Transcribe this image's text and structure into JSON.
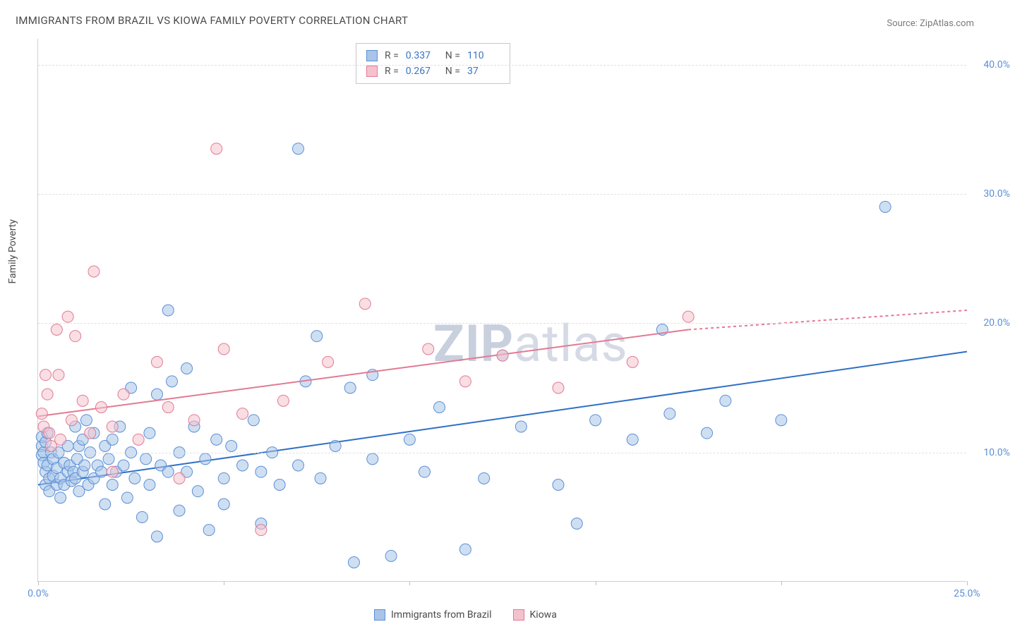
{
  "title": "IMMIGRANTS FROM BRAZIL VS KIOWA FAMILY POVERTY CORRELATION CHART",
  "source": "Source: ZipAtlas.com",
  "watermark_bold": "ZIP",
  "watermark_rest": "atlas",
  "y_axis_label": "Family Poverty",
  "chart": {
    "type": "scatter",
    "xlim": [
      0,
      25
    ],
    "ylim": [
      0,
      42
    ],
    "x_ticks": [
      0,
      5,
      10,
      15,
      20,
      25
    ],
    "x_tick_labels": [
      "0.0%",
      "",
      "",
      "",
      "",
      "25.0%"
    ],
    "y_ticks": [
      10,
      20,
      30,
      40
    ],
    "y_tick_labels": [
      "10.0%",
      "20.0%",
      "30.0%",
      "40.0%"
    ],
    "grid_color": "#e0e0e0",
    "background_color": "#ffffff",
    "marker_radius": 8,
    "marker_opacity": 0.55,
    "series": [
      {
        "name": "Immigrants from Brazil",
        "color_fill": "#a8c4e8",
        "color_stroke": "#5b8fd6",
        "r_value": "0.337",
        "n_value": "110",
        "trend": {
          "x1": 0,
          "y1": 7.5,
          "x2": 25,
          "y2": 17.8,
          "color": "#2f6fc7",
          "width": 2
        },
        "points": [
          [
            0.1,
            10.5
          ],
          [
            0.1,
            9.8
          ],
          [
            0.1,
            11.2
          ],
          [
            0.15,
            10.0
          ],
          [
            0.15,
            9.2
          ],
          [
            0.2,
            7.5
          ],
          [
            0.2,
            8.5
          ],
          [
            0.2,
            10.8
          ],
          [
            0.25,
            9.0
          ],
          [
            0.25,
            11.5
          ],
          [
            0.3,
            7.0
          ],
          [
            0.3,
            8.0
          ],
          [
            0.35,
            10.0
          ],
          [
            0.4,
            8.2
          ],
          [
            0.4,
            9.5
          ],
          [
            0.5,
            7.5
          ],
          [
            0.5,
            8.8
          ],
          [
            0.55,
            10.0
          ],
          [
            0.6,
            8.0
          ],
          [
            0.6,
            6.5
          ],
          [
            0.7,
            9.2
          ],
          [
            0.7,
            7.5
          ],
          [
            0.8,
            8.5
          ],
          [
            0.8,
            10.5
          ],
          [
            0.85,
            9.0
          ],
          [
            0.9,
            7.8
          ],
          [
            0.95,
            8.5
          ],
          [
            1.0,
            12.0
          ],
          [
            1.0,
            8.0
          ],
          [
            1.05,
            9.5
          ],
          [
            1.1,
            10.5
          ],
          [
            1.1,
            7.0
          ],
          [
            1.2,
            11.0
          ],
          [
            1.2,
            8.5
          ],
          [
            1.25,
            9.0
          ],
          [
            1.3,
            12.5
          ],
          [
            1.35,
            7.5
          ],
          [
            1.4,
            10.0
          ],
          [
            1.5,
            8.0
          ],
          [
            1.5,
            11.5
          ],
          [
            1.6,
            9.0
          ],
          [
            1.7,
            8.5
          ],
          [
            1.8,
            10.5
          ],
          [
            1.8,
            6.0
          ],
          [
            1.9,
            9.5
          ],
          [
            2.0,
            11.0
          ],
          [
            2.0,
            7.5
          ],
          [
            2.1,
            8.5
          ],
          [
            2.2,
            12.0
          ],
          [
            2.3,
            9.0
          ],
          [
            2.4,
            6.5
          ],
          [
            2.5,
            15.0
          ],
          [
            2.5,
            10.0
          ],
          [
            2.6,
            8.0
          ],
          [
            2.8,
            5.0
          ],
          [
            2.9,
            9.5
          ],
          [
            3.0,
            11.5
          ],
          [
            3.0,
            7.5
          ],
          [
            3.2,
            3.5
          ],
          [
            3.2,
            14.5
          ],
          [
            3.3,
            9.0
          ],
          [
            3.5,
            8.5
          ],
          [
            3.5,
            21.0
          ],
          [
            3.6,
            15.5
          ],
          [
            3.8,
            10.0
          ],
          [
            3.8,
            5.5
          ],
          [
            4.0,
            8.5
          ],
          [
            4.0,
            16.5
          ],
          [
            4.2,
            12.0
          ],
          [
            4.3,
            7.0
          ],
          [
            4.5,
            9.5
          ],
          [
            4.6,
            4.0
          ],
          [
            4.8,
            11.0
          ],
          [
            5.0,
            8.0
          ],
          [
            5.0,
            6.0
          ],
          [
            5.2,
            10.5
          ],
          [
            5.5,
            9.0
          ],
          [
            5.8,
            12.5
          ],
          [
            6.0,
            8.5
          ],
          [
            6.0,
            4.5
          ],
          [
            6.3,
            10.0
          ],
          [
            6.5,
            7.5
          ],
          [
            7.0,
            9.0
          ],
          [
            7.0,
            33.5
          ],
          [
            7.2,
            15.5
          ],
          [
            7.5,
            19.0
          ],
          [
            7.6,
            8.0
          ],
          [
            8.0,
            10.5
          ],
          [
            8.4,
            15.0
          ],
          [
            8.5,
            1.5
          ],
          [
            9.0,
            9.5
          ],
          [
            9.0,
            16.0
          ],
          [
            9.5,
            2.0
          ],
          [
            10.0,
            11.0
          ],
          [
            10.4,
            8.5
          ],
          [
            10.8,
            13.5
          ],
          [
            11.5,
            2.5
          ],
          [
            12.0,
            8.0
          ],
          [
            12.5,
            17.5
          ],
          [
            13.0,
            12.0
          ],
          [
            14.0,
            7.5
          ],
          [
            14.5,
            4.5
          ],
          [
            15.0,
            12.5
          ],
          [
            16.0,
            11.0
          ],
          [
            16.8,
            19.5
          ],
          [
            17.0,
            13.0
          ],
          [
            18.0,
            11.5
          ],
          [
            18.5,
            14.0
          ],
          [
            20.0,
            12.5
          ],
          [
            22.8,
            29.0
          ]
        ]
      },
      {
        "name": "Kiowa",
        "color_fill": "#f4c2cd",
        "color_stroke": "#e27a94",
        "r_value": "0.267",
        "n_value": "37",
        "trend": {
          "x1": 0,
          "y1": 12.8,
          "x2": 17.5,
          "y2": 19.5,
          "dash_x2": 25,
          "dash_y2": 21.0,
          "color": "#e27a94",
          "width": 2
        },
        "points": [
          [
            0.1,
            13.0
          ],
          [
            0.15,
            12.0
          ],
          [
            0.2,
            16.0
          ],
          [
            0.25,
            14.5
          ],
          [
            0.3,
            11.5
          ],
          [
            0.35,
            10.5
          ],
          [
            0.5,
            19.5
          ],
          [
            0.55,
            16.0
          ],
          [
            0.6,
            11.0
          ],
          [
            0.8,
            20.5
          ],
          [
            0.9,
            12.5
          ],
          [
            1.0,
            19.0
          ],
          [
            1.2,
            14.0
          ],
          [
            1.4,
            11.5
          ],
          [
            1.5,
            24.0
          ],
          [
            1.7,
            13.5
          ],
          [
            2.0,
            12.0
          ],
          [
            2.0,
            8.5
          ],
          [
            2.3,
            14.5
          ],
          [
            2.7,
            11.0
          ],
          [
            3.2,
            17.0
          ],
          [
            3.5,
            13.5
          ],
          [
            3.8,
            8.0
          ],
          [
            4.2,
            12.5
          ],
          [
            4.8,
            33.5
          ],
          [
            5.0,
            18.0
          ],
          [
            5.5,
            13.0
          ],
          [
            6.0,
            4.0
          ],
          [
            6.6,
            14.0
          ],
          [
            7.8,
            17.0
          ],
          [
            8.8,
            21.5
          ],
          [
            10.5,
            18.0
          ],
          [
            11.5,
            15.5
          ],
          [
            12.5,
            17.5
          ],
          [
            14.0,
            15.0
          ],
          [
            16.0,
            17.0
          ],
          [
            17.5,
            20.5
          ]
        ]
      }
    ]
  },
  "stat_legend_labels": {
    "r": "R =",
    "n": "N ="
  },
  "bottom_legend": {
    "series1": "Immigrants from Brazil",
    "series2": "Kiowa"
  }
}
